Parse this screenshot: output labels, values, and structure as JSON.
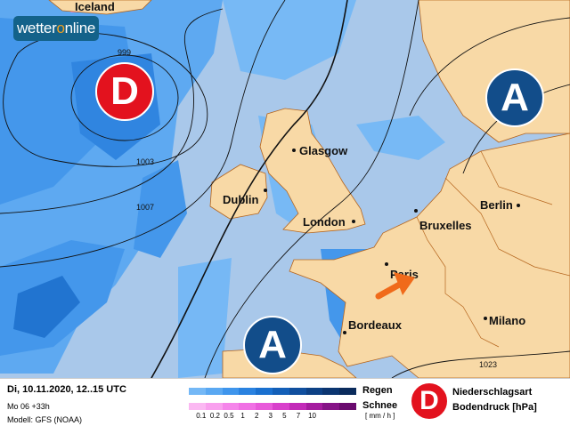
{
  "brand": {
    "pre": "wetter",
    "o": "o",
    "post": "nline"
  },
  "colors": {
    "sea": "#a9c8ea",
    "land": "#f8d9a6",
    "low": "#e3121e",
    "high": "#124d8a",
    "arrow": "#f06a1a"
  },
  "cities": [
    {
      "name": "Iceland"
    },
    {
      "name": "Glasgow"
    },
    {
      "name": "Dublin"
    },
    {
      "name": "London"
    },
    {
      "name": "Bruxelles"
    },
    {
      "name": "Paris"
    },
    {
      "name": "Bordeaux"
    },
    {
      "name": "Berlin"
    },
    {
      "name": "Milano"
    }
  ],
  "isobars": [
    "999",
    "1003",
    "1007",
    "1023"
  ],
  "pressure_centers": {
    "low": "D",
    "high": "A"
  },
  "legend": {
    "date": "Di, 10.11.2020, 12..15 UTC",
    "run": "Mo 06 +33h",
    "model": "Modell: GFS (NOAA)",
    "rain_label": "Regen",
    "snow_label": "Schnee",
    "unit": "[ mm / h ]",
    "ticks": [
      "0.1",
      "0.2",
      "0.5",
      "1",
      "2",
      "3",
      "5",
      "7",
      "10"
    ],
    "rain_colors": [
      "#74b8f6",
      "#5aa8f2",
      "#3f95ec",
      "#2a82e0",
      "#1a70cf",
      "#135fb8",
      "#104f9e",
      "#0d4185",
      "#0b3570",
      "#0a2b5c"
    ],
    "snow_colors": [
      "#fbb8f2",
      "#f9a0ee",
      "#f585ea",
      "#f070e4",
      "#e85ada",
      "#d840cb",
      "#c22ab8",
      "#a51c9f",
      "#861487",
      "#6a0a6e"
    ],
    "precip_type": "Niederschlagsart",
    "pressure": "Bodendruck [hPa]",
    "icon": "D"
  }
}
